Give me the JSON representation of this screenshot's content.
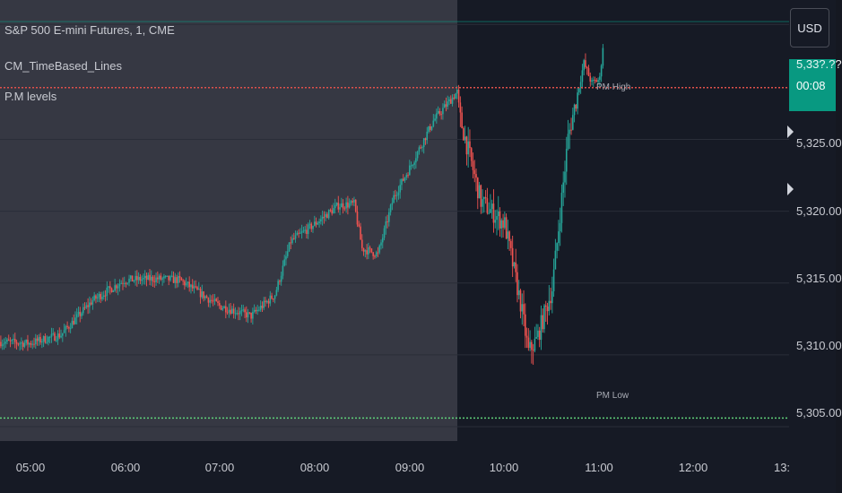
{
  "legend": {
    "symbol": "S&P 500 E-mini Futures, 1, CME",
    "indicator_1": "CM_TimeBased_Lines",
    "indicator_2": "P.M levels"
  },
  "price_axis": {
    "currency": "USD",
    "last_price_partial": "5,33?.??",
    "countdown": "00:08"
  },
  "levels": {
    "pm_high_label": "PM High",
    "pm_low_label": "PM Low",
    "pm_high_value": 5328.6,
    "pm_low_value": 5305.6
  },
  "colors": {
    "background": "#161a25",
    "premarket_shade": "#363843",
    "up": "#26a69a",
    "down": "#ef5350",
    "pm_high_line": "#e0504b",
    "pm_low_line": "#5fd17a",
    "last_price_bg": "#089981"
  },
  "chart_data": {
    "type": "candlestick",
    "title": "S&P 500 E-mini Futures, 1, CME",
    "x_ticks": [
      "05:00",
      "06:00",
      "07:00",
      "08:00",
      "09:00",
      "10:00",
      "11:00",
      "12:00",
      "13:"
    ],
    "y_ticks": [
      "5,325.00",
      "5,320.00",
      "5,315.00",
      "5,310.00",
      "5,305.00"
    ],
    "y_tick_values": [
      5325,
      5320,
      5315,
      5310,
      5305
    ],
    "x_range": [
      "04:42",
      "13:00"
    ],
    "y_range": [
      5304,
      5334.7
    ],
    "series": [
      {
        "name": "S&P 500 E-mini Futures",
        "approx_close_path": [
          [
            "04:42",
            5310.9
          ],
          [
            "05:00",
            5310.8
          ],
          [
            "05:20",
            5311.4
          ],
          [
            "05:40",
            5313.8
          ],
          [
            "06:00",
            5315.2
          ],
          [
            "06:20",
            5315.3
          ],
          [
            "06:35",
            5315.2
          ],
          [
            "07:00",
            5313.4
          ],
          [
            "07:20",
            5312.7
          ],
          [
            "07:35",
            5314.2
          ],
          [
            "07:45",
            5317.9
          ],
          [
            "08:00",
            5319.1
          ],
          [
            "08:15",
            5320.4
          ],
          [
            "08:25",
            5320.5
          ],
          [
            "08:30",
            5317.4
          ],
          [
            "08:40",
            5317.0
          ],
          [
            "08:50",
            5321.0
          ],
          [
            "09:00",
            5323.0
          ],
          [
            "09:15",
            5326.3
          ],
          [
            "09:30",
            5328.3
          ],
          [
            "09:32",
            5326.4
          ],
          [
            "09:45",
            5320.7
          ],
          [
            "10:00",
            5319.1
          ],
          [
            "10:10",
            5313.6
          ],
          [
            "10:15",
            5310.2
          ],
          [
            "10:20",
            5311.0
          ],
          [
            "10:30",
            5314.6
          ],
          [
            "10:40",
            5325.1
          ],
          [
            "10:50",
            5330.3
          ],
          [
            "10:55",
            5328.9
          ],
          [
            "11:00",
            5329.2
          ],
          [
            "11:02",
            5331.5
          ]
        ]
      }
    ],
    "annotations": [
      {
        "text": "PM High",
        "y": 5328.6
      },
      {
        "text": "PM Low",
        "y": 5305.6
      }
    ],
    "grid": true,
    "shaded_region": [
      "04:42",
      "09:32"
    ]
  }
}
